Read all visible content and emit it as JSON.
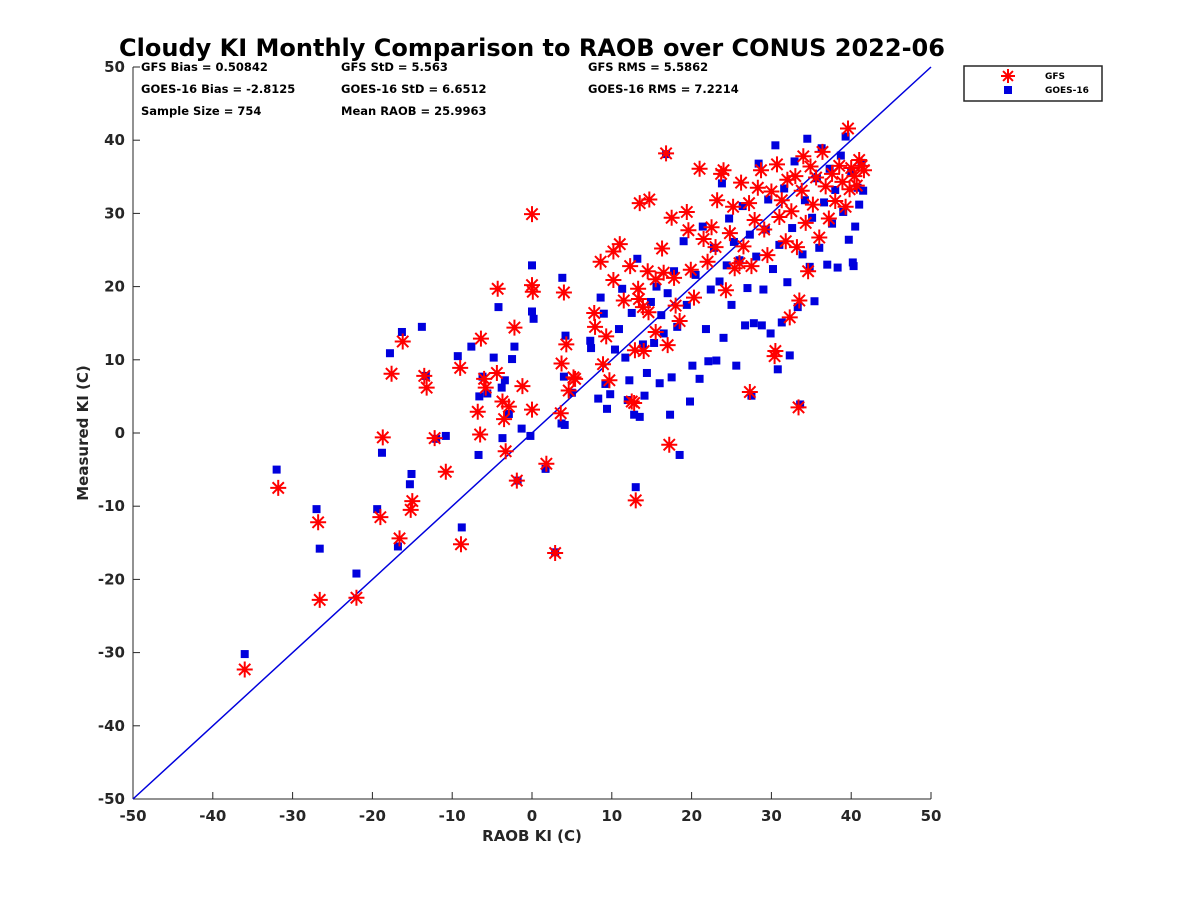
{
  "chart_data": {
    "type": "scatter",
    "title": "Cloudy KI Monthly Comparison to RAOB over CONUS 2022-06",
    "xlabel": "RAOB KI (C)",
    "ylabel": "Measured KI (C)",
    "xlim": [
      -50,
      50
    ],
    "ylim": [
      -50,
      50
    ],
    "xticks": [
      -50,
      -40,
      -30,
      -20,
      -10,
      0,
      10,
      20,
      30,
      40,
      50
    ],
    "yticks": [
      -50,
      -40,
      -30,
      -20,
      -10,
      0,
      10,
      20,
      30,
      40,
      50
    ],
    "grid": false,
    "legend_placement": "outside-top-right",
    "stats": [
      "GFS Bias = 0.50842",
      "GFS StD = 5.563",
      "GFS RMS = 5.5862",
      "GOES-16 Bias = -2.8125",
      "GOES-16 StD = 6.6512",
      "GOES-16 RMS = 7.2214",
      "Sample Size = 754",
      "Mean RAOB = 25.9963"
    ],
    "reference_line": {
      "x": [
        -50,
        50
      ],
      "y": [
        -50,
        50
      ],
      "color": "#0000dd"
    },
    "series": [
      {
        "name": "GFS",
        "marker": "asterisk",
        "color": "#ff0000",
        "points": [
          [
            -36,
            -32.3
          ],
          [
            -31.8,
            -7.5
          ],
          [
            -26.8,
            -12.2
          ],
          [
            -26.6,
            -22.8
          ],
          [
            -22,
            -22.5
          ],
          [
            -19,
            -11.5
          ],
          [
            -18.7,
            -0.6
          ],
          [
            -17.6,
            8.1
          ],
          [
            -16.6,
            -14.4
          ],
          [
            -16.2,
            12.5
          ],
          [
            -15.2,
            -10.5
          ],
          [
            -15,
            -9.3
          ],
          [
            -13.5,
            7.8
          ],
          [
            -13.2,
            6.2
          ],
          [
            -12.2,
            -0.7
          ],
          [
            -10.8,
            -5.3
          ],
          [
            -9,
            8.9
          ],
          [
            -8.9,
            -15.2
          ],
          [
            -6.8,
            2.9
          ],
          [
            -6.5,
            -0.2
          ],
          [
            -6.4,
            12.9
          ],
          [
            -6,
            7.4
          ],
          [
            -5.8,
            6.2
          ],
          [
            -4.4,
            8.2
          ],
          [
            -4.3,
            19.7
          ],
          [
            -3.7,
            4.3
          ],
          [
            -3.5,
            1.9
          ],
          [
            -3.3,
            -2.5
          ],
          [
            -2.9,
            3.6
          ],
          [
            -2.2,
            14.4
          ],
          [
            -1.9,
            -6.5
          ],
          [
            -1.2,
            6.4
          ],
          [
            0,
            29.9
          ],
          [
            0,
            20.2
          ],
          [
            0.1,
            19.3
          ],
          [
            0,
            3.2
          ],
          [
            1.8,
            -4.2
          ],
          [
            2.9,
            -16.4
          ],
          [
            3.6,
            2.7
          ],
          [
            3.7,
            9.5
          ],
          [
            4,
            19.2
          ],
          [
            4.3,
            12.1
          ],
          [
            5.2,
            7.6
          ],
          [
            4.6,
            5.8
          ],
          [
            5.4,
            7.4
          ],
          [
            7.8,
            16.4
          ],
          [
            7.9,
            14.5
          ],
          [
            8.6,
            23.4
          ],
          [
            8.9,
            9.4
          ],
          [
            9.3,
            13.2
          ],
          [
            9.7,
            7.2
          ],
          [
            10.2,
            20.9
          ],
          [
            10.2,
            24.8
          ],
          [
            11,
            25.8
          ],
          [
            11.5,
            18.1
          ],
          [
            12.3,
            22.8
          ],
          [
            12.5,
            4.3
          ],
          [
            12.8,
            4.1
          ],
          [
            12.9,
            11.3
          ],
          [
            13,
            -9.2
          ],
          [
            13.3,
            19.7
          ],
          [
            13.4,
            18.3
          ],
          [
            13.5,
            31.4
          ],
          [
            13.9,
            17.2
          ],
          [
            14,
            11.2
          ],
          [
            14.5,
            22.1
          ],
          [
            14.6,
            16.5
          ],
          [
            14.7,
            31.9
          ],
          [
            15.5,
            21
          ],
          [
            15.5,
            13.8
          ],
          [
            16.3,
            25.2
          ],
          [
            16.5,
            21.9
          ],
          [
            16.8,
            38.2
          ],
          [
            17,
            12
          ],
          [
            17.2,
            -1.6
          ],
          [
            17.5,
            29.4
          ],
          [
            17.8,
            21.2
          ],
          [
            18,
            17.4
          ],
          [
            18.5,
            15.3
          ],
          [
            19.4,
            30.2
          ],
          [
            19.6,
            27.7
          ],
          [
            19.9,
            22.3
          ],
          [
            20.3,
            18.5
          ],
          [
            21,
            36.1
          ],
          [
            21.5,
            26.5
          ],
          [
            22,
            23.4
          ],
          [
            22.5,
            28.1
          ],
          [
            23,
            25.4
          ],
          [
            23.2,
            31.8
          ],
          [
            23.7,
            35.4
          ],
          [
            24,
            35.9
          ],
          [
            24.3,
            19.5
          ],
          [
            24.8,
            27.3
          ],
          [
            25.2,
            30.9
          ],
          [
            25.4,
            22.5
          ],
          [
            26,
            23.2
          ],
          [
            26.2,
            34.2
          ],
          [
            26.5,
            25.5
          ],
          [
            27.2,
            31.4
          ],
          [
            27.5,
            22.8
          ],
          [
            27.3,
            5.6
          ],
          [
            27.9,
            29.1
          ],
          [
            28.3,
            33.5
          ],
          [
            28.7,
            35.9
          ],
          [
            29.1,
            27.8
          ],
          [
            29.5,
            24.3
          ],
          [
            30,
            33
          ],
          [
            30.4,
            10.5
          ],
          [
            30.5,
            11.2
          ],
          [
            30.7,
            36.7
          ],
          [
            31,
            29.5
          ],
          [
            31.3,
            31.8
          ],
          [
            31.8,
            26.2
          ],
          [
            32,
            34.6
          ],
          [
            32.3,
            15.8
          ],
          [
            32.5,
            30.3
          ],
          [
            33,
            35.1
          ],
          [
            33.2,
            25.4
          ],
          [
            33.4,
            3.5
          ],
          [
            33.5,
            18.1
          ],
          [
            33.8,
            33.1
          ],
          [
            34,
            37.8
          ],
          [
            34.3,
            28.7
          ],
          [
            34.6,
            22.1
          ],
          [
            34.9,
            36.4
          ],
          [
            35.2,
            31.2
          ],
          [
            35.6,
            34.9
          ],
          [
            36,
            26.7
          ],
          [
            36.4,
            38.4
          ],
          [
            36.8,
            33.7
          ],
          [
            37.2,
            29.3
          ],
          [
            37.6,
            35.4
          ],
          [
            38,
            31.7
          ],
          [
            38.5,
            36.5
          ],
          [
            38.9,
            34.3
          ],
          [
            39.3,
            30.9
          ],
          [
            39.6,
            41.6
          ],
          [
            39.8,
            33.3
          ],
          [
            40,
            36.2
          ],
          [
            40.4,
            35.1
          ],
          [
            40.7,
            33.8
          ],
          [
            41,
            37.3
          ],
          [
            41.3,
            36.5
          ],
          [
            41.6,
            35.9
          ]
        ]
      },
      {
        "name": "GOES-16",
        "marker": "square",
        "color": "#0000dd",
        "points": [
          [
            -36,
            -30.2
          ],
          [
            -32,
            -5
          ],
          [
            -27,
            -10.4
          ],
          [
            -26.6,
            -15.8
          ],
          [
            -22,
            -19.2
          ],
          [
            -19.4,
            -10.4
          ],
          [
            -18.8,
            -2.7
          ],
          [
            -17.8,
            10.9
          ],
          [
            -16.8,
            -15.5
          ],
          [
            -16.3,
            13.8
          ],
          [
            -15.3,
            -7
          ],
          [
            -15.1,
            -5.6
          ],
          [
            -13.8,
            14.5
          ],
          [
            -13.3,
            7.8
          ],
          [
            -12,
            -0.8
          ],
          [
            -10.8,
            -0.4
          ],
          [
            -9.3,
            10.5
          ],
          [
            -8.8,
            -12.9
          ],
          [
            -7.6,
            11.8
          ],
          [
            -6.7,
            -3
          ],
          [
            -6.6,
            5
          ],
          [
            -6.2,
            7.7
          ],
          [
            -5.6,
            5.4
          ],
          [
            -4.8,
            10.3
          ],
          [
            -4.2,
            17.2
          ],
          [
            -3.8,
            6.2
          ],
          [
            -3.7,
            -0.7
          ],
          [
            -3.4,
            7.2
          ],
          [
            -2.9,
            2.6
          ],
          [
            -2.5,
            10.1
          ],
          [
            -2.2,
            11.8
          ],
          [
            -1.8,
            -6.5
          ],
          [
            -1.3,
            0.6
          ],
          [
            0,
            22.9
          ],
          [
            0,
            16.6
          ],
          [
            0.2,
            15.6
          ],
          [
            -0.2,
            -0.4
          ],
          [
            1.7,
            -4.9
          ],
          [
            2.9,
            -16.3
          ],
          [
            3.7,
            1.3
          ],
          [
            3.8,
            21.2
          ],
          [
            4.2,
            13.3
          ],
          [
            4,
            7.7
          ],
          [
            4.1,
            1.1
          ],
          [
            5,
            5.5
          ],
          [
            7.3,
            12.6
          ],
          [
            7.4,
            11.6
          ],
          [
            8.3,
            4.7
          ],
          [
            8.6,
            18.5
          ],
          [
            9,
            16.3
          ],
          [
            9.2,
            6.7
          ],
          [
            9.4,
            3.3
          ],
          [
            9.8,
            5.3
          ],
          [
            10.4,
            11.4
          ],
          [
            10.9,
            14.2
          ],
          [
            11.3,
            19.7
          ],
          [
            11.7,
            10.3
          ],
          [
            12,
            4.5
          ],
          [
            12.2,
            7.2
          ],
          [
            12.5,
            16.4
          ],
          [
            12.8,
            2.5
          ],
          [
            13,
            -7.4
          ],
          [
            13.2,
            23.8
          ],
          [
            13.5,
            2.2
          ],
          [
            13.9,
            12.1
          ],
          [
            14.1,
            5.1
          ],
          [
            14.4,
            8.2
          ],
          [
            14.9,
            17.9
          ],
          [
            15.3,
            12.3
          ],
          [
            15.6,
            20
          ],
          [
            16,
            6.8
          ],
          [
            16.2,
            16.1
          ],
          [
            16.5,
            13.6
          ],
          [
            16.8,
            38.1
          ],
          [
            17,
            19.1
          ],
          [
            17.3,
            2.5
          ],
          [
            17.5,
            7.6
          ],
          [
            17.8,
            22.1
          ],
          [
            18.2,
            14.5
          ],
          [
            18.5,
            -3
          ],
          [
            19,
            26.2
          ],
          [
            19.4,
            17.5
          ],
          [
            19.8,
            4.3
          ],
          [
            20.1,
            9.2
          ],
          [
            20.5,
            21.6
          ],
          [
            21,
            7.4
          ],
          [
            21.4,
            28.2
          ],
          [
            21.8,
            14.2
          ],
          [
            22.1,
            9.8
          ],
          [
            22.4,
            19.6
          ],
          [
            22.8,
            25.3
          ],
          [
            23.1,
            9.9
          ],
          [
            23.5,
            20.7
          ],
          [
            23.8,
            34.1
          ],
          [
            24,
            13
          ],
          [
            24.4,
            22.9
          ],
          [
            24.7,
            29.3
          ],
          [
            25,
            17.5
          ],
          [
            25.3,
            26.1
          ],
          [
            25.6,
            9.2
          ],
          [
            26,
            23.6
          ],
          [
            26.4,
            31
          ],
          [
            26.7,
            14.7
          ],
          [
            27,
            19.8
          ],
          [
            27.3,
            27.1
          ],
          [
            27.5,
            5.1
          ],
          [
            27.8,
            15
          ],
          [
            28.1,
            24.1
          ],
          [
            28.4,
            36.8
          ],
          [
            28.8,
            14.7
          ],
          [
            29,
            19.6
          ],
          [
            29.3,
            27.8
          ],
          [
            29.6,
            31.9
          ],
          [
            29.9,
            13.6
          ],
          [
            30.2,
            22.4
          ],
          [
            30.5,
            39.3
          ],
          [
            30.8,
            8.7
          ],
          [
            31,
            25.7
          ],
          [
            31.3,
            15.1
          ],
          [
            31.6,
            33.4
          ],
          [
            32,
            20.6
          ],
          [
            32.3,
            10.6
          ],
          [
            32.6,
            28
          ],
          [
            32.9,
            37.1
          ],
          [
            33.3,
            17.2
          ],
          [
            33.6,
            3.9
          ],
          [
            33.9,
            24.4
          ],
          [
            34.2,
            31.8
          ],
          [
            34.5,
            40.2
          ],
          [
            34.8,
            22.7
          ],
          [
            35.1,
            29.4
          ],
          [
            35.4,
            18
          ],
          [
            35.7,
            34.8
          ],
          [
            36,
            25.3
          ],
          [
            36.3,
            38.9
          ],
          [
            36.6,
            31.5
          ],
          [
            37,
            23
          ],
          [
            37.3,
            36.1
          ],
          [
            37.6,
            28.6
          ],
          [
            38,
            33.2
          ],
          [
            38.3,
            22.6
          ],
          [
            38.7,
            37.9
          ],
          [
            39,
            30.2
          ],
          [
            39.3,
            40.5
          ],
          [
            39.7,
            26.4
          ],
          [
            40,
            35.7
          ],
          [
            40.2,
            23.3
          ],
          [
            40.3,
            22.8
          ],
          [
            40.5,
            28.2
          ],
          [
            40.8,
            33.5
          ],
          [
            41,
            31.2
          ],
          [
            41.3,
            36.9
          ],
          [
            41.5,
            33.1
          ]
        ]
      }
    ]
  }
}
